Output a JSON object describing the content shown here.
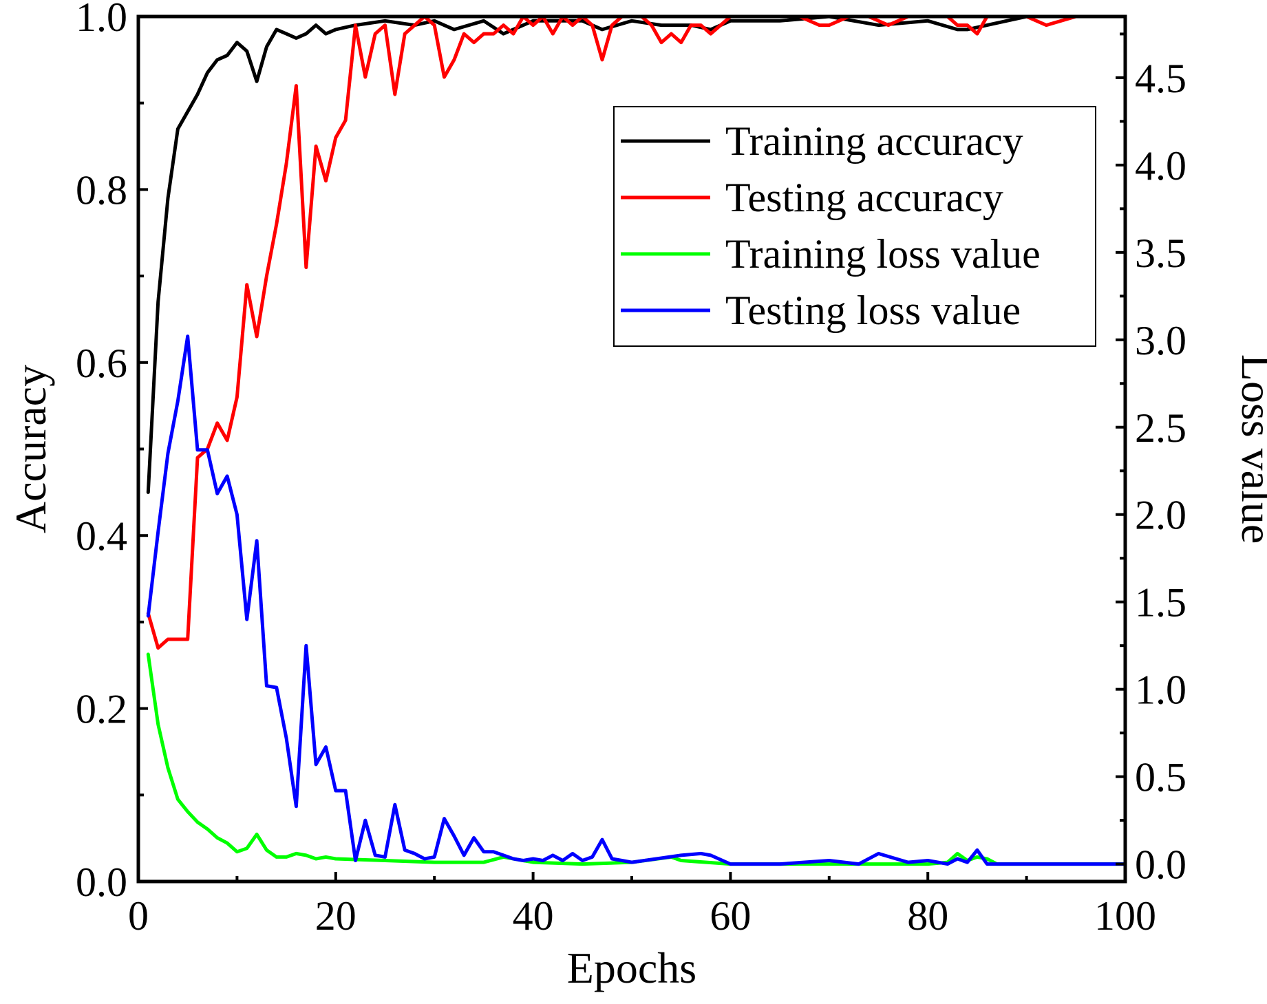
{
  "chart_data": {
    "type": "line",
    "title": "",
    "xlabel": "Epochs",
    "ylabel": "Accuracy",
    "y2label": "Loss value",
    "xlim": [
      0,
      100
    ],
    "ylim": [
      0,
      1.0
    ],
    "y2lim": [
      -0.1,
      4.85
    ],
    "xticks": [
      "0",
      "20",
      "40",
      "60",
      "80",
      "100"
    ],
    "xtick_values": [
      0,
      20,
      40,
      60,
      80,
      100
    ],
    "yticks": [
      "0.0",
      "0.2",
      "0.4",
      "0.6",
      "0.8",
      "1.0"
    ],
    "ytick_values": [
      0,
      0.2,
      0.4,
      0.6,
      0.8,
      1.0
    ],
    "y2ticks": [
      "0.0",
      "0.5",
      "1.0",
      "1.5",
      "2.0",
      "2.5",
      "3.0",
      "3.5",
      "4.0",
      "4.5"
    ],
    "y2tick_values": [
      0,
      0.5,
      1.0,
      1.5,
      2.0,
      2.5,
      3.0,
      3.5,
      4.0,
      4.5
    ],
    "grid": false,
    "legend_position": "top-right",
    "series": [
      {
        "name": "Training accuracy",
        "axis": "left",
        "color": "#000000",
        "x": [
          1,
          2,
          3,
          4,
          5,
          6,
          7,
          8,
          9,
          10,
          11,
          12,
          13,
          14,
          15,
          16,
          17,
          18,
          19,
          20,
          22,
          25,
          28,
          30,
          32,
          35,
          37,
          40,
          45,
          47,
          50,
          53,
          56,
          58,
          60,
          65,
          70,
          75,
          80,
          83,
          84,
          86,
          88,
          90,
          95,
          100
        ],
        "values": [
          0.45,
          0.67,
          0.79,
          0.87,
          0.89,
          0.91,
          0.935,
          0.95,
          0.955,
          0.97,
          0.96,
          0.925,
          0.965,
          0.985,
          0.98,
          0.975,
          0.98,
          0.99,
          0.98,
          0.985,
          0.99,
          0.995,
          0.99,
          0.995,
          0.985,
          0.995,
          0.98,
          0.995,
          0.995,
          0.985,
          0.995,
          0.99,
          0.99,
          0.985,
          0.995,
          0.995,
          1.0,
          0.99,
          0.995,
          0.985,
          0.985,
          0.99,
          0.995,
          1.0,
          1.0,
          1.0
        ]
      },
      {
        "name": "Testing accuracy",
        "axis": "left",
        "color": "#ff0000",
        "x": [
          1,
          2,
          3,
          4,
          5,
          6,
          7,
          8,
          9,
          10,
          11,
          12,
          13,
          14,
          15,
          16,
          17,
          18,
          19,
          20,
          21,
          22,
          23,
          24,
          25,
          26,
          27,
          28,
          29,
          30,
          31,
          32,
          33,
          34,
          35,
          36,
          37,
          38,
          39,
          40,
          41,
          42,
          43,
          44,
          45,
          46,
          47,
          48,
          49,
          50,
          51,
          52,
          53,
          54,
          55,
          56,
          57,
          58,
          59,
          60,
          62,
          65,
          67,
          69,
          70,
          72,
          74,
          76,
          78,
          80,
          82,
          83,
          84,
          85,
          86,
          88,
          90,
          92,
          95,
          100
        ],
        "values": [
          0.31,
          0.27,
          0.28,
          0.28,
          0.28,
          0.49,
          0.5,
          0.53,
          0.51,
          0.56,
          0.69,
          0.63,
          0.7,
          0.76,
          0.83,
          0.92,
          0.71,
          0.85,
          0.81,
          0.86,
          0.88,
          0.99,
          0.93,
          0.98,
          0.99,
          0.91,
          0.98,
          0.99,
          1.0,
          0.99,
          0.93,
          0.95,
          0.98,
          0.97,
          0.98,
          0.98,
          0.99,
          0.98,
          1.0,
          0.99,
          1.0,
          0.98,
          1.0,
          0.99,
          1.0,
          0.99,
          0.95,
          0.99,
          1.0,
          1.0,
          1.0,
          0.99,
          0.97,
          0.98,
          0.97,
          0.99,
          0.99,
          0.98,
          0.99,
          1.0,
          1.0,
          1.0,
          1.0,
          0.99,
          0.99,
          1.0,
          1.0,
          0.99,
          1.0,
          1.0,
          1.0,
          0.99,
          0.99,
          0.98,
          1.0,
          1.0,
          1.0,
          0.99,
          1.0,
          1.0
        ]
      },
      {
        "name": "Training loss value",
        "axis": "right",
        "color": "#00ff00",
        "x": [
          1,
          2,
          3,
          4,
          5,
          6,
          7,
          8,
          9,
          10,
          11,
          12,
          13,
          14,
          15,
          16,
          17,
          18,
          19,
          20,
          25,
          30,
          35,
          37,
          40,
          45,
          50,
          54,
          55,
          60,
          70,
          80,
          82,
          83,
          84,
          85,
          86,
          87,
          90,
          100
        ],
        "values": [
          1.2,
          0.8,
          0.55,
          0.37,
          0.3,
          0.24,
          0.2,
          0.15,
          0.12,
          0.07,
          0.09,
          0.17,
          0.08,
          0.04,
          0.04,
          0.06,
          0.05,
          0.03,
          0.04,
          0.03,
          0.02,
          0.01,
          0.01,
          0.04,
          0.01,
          0.0,
          0.01,
          0.04,
          0.02,
          0.0,
          0.0,
          0.0,
          0.01,
          0.06,
          0.02,
          0.04,
          0.03,
          0.0,
          0.0,
          0.0
        ]
      },
      {
        "name": "Testing loss value",
        "axis": "right",
        "color": "#0000ff",
        "x": [
          1,
          2,
          3,
          4,
          5,
          6,
          7,
          8,
          9,
          10,
          11,
          12,
          13,
          14,
          15,
          16,
          17,
          18,
          19,
          20,
          21,
          22,
          23,
          24,
          25,
          26,
          27,
          28,
          29,
          30,
          31,
          32,
          33,
          34,
          35,
          36,
          37,
          38,
          39,
          40,
          41,
          42,
          43,
          44,
          45,
          46,
          47,
          48,
          49,
          50,
          55,
          57,
          58,
          60,
          65,
          70,
          73,
          75,
          78,
          80,
          82,
          83,
          84,
          85,
          86,
          88,
          90,
          100
        ],
        "values": [
          1.42,
          1.9,
          2.35,
          2.65,
          3.02,
          2.37,
          2.37,
          2.12,
          2.22,
          2.0,
          1.4,
          1.85,
          1.02,
          1.01,
          0.72,
          0.33,
          1.25,
          0.57,
          0.67,
          0.42,
          0.42,
          0.02,
          0.25,
          0.05,
          0.04,
          0.34,
          0.08,
          0.06,
          0.03,
          0.04,
          0.26,
          0.16,
          0.05,
          0.15,
          0.07,
          0.07,
          0.05,
          0.03,
          0.02,
          0.03,
          0.02,
          0.05,
          0.02,
          0.06,
          0.02,
          0.04,
          0.14,
          0.03,
          0.02,
          0.01,
          0.05,
          0.06,
          0.05,
          0.0,
          0.0,
          0.02,
          0.0,
          0.06,
          0.01,
          0.02,
          0.0,
          0.03,
          0.01,
          0.08,
          0.0,
          0.0,
          0.0,
          0.0
        ]
      }
    ]
  }
}
